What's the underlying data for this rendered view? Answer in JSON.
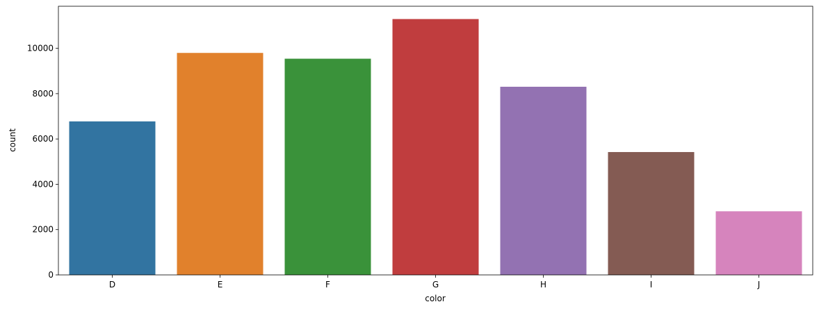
{
  "chart_data": {
    "type": "bar",
    "x_label": "color",
    "y_label": "count",
    "categories": [
      "D",
      "E",
      "F",
      "G",
      "H",
      "I",
      "J"
    ],
    "values": [
      6775,
      9797,
      9542,
      11292,
      8304,
      5422,
      2808
    ],
    "colors": [
      "#3274a1",
      "#e1812c",
      "#3a923a",
      "#c03d3e",
      "#9372b2",
      "#845b53",
      "#d684bd"
    ],
    "ylim": [
      0,
      11857
    ],
    "yticks": [
      0,
      2000,
      4000,
      6000,
      8000,
      10000
    ]
  }
}
